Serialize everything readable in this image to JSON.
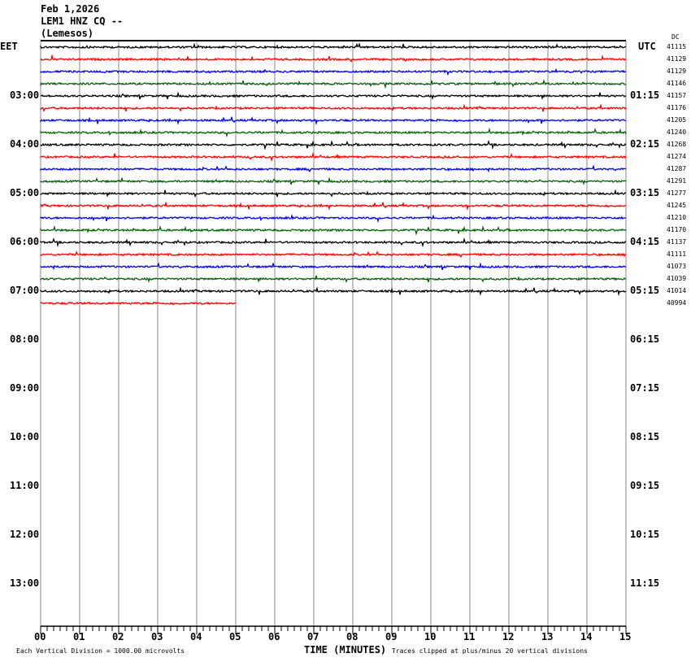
{
  "header": {
    "date": "Feb 1,2026",
    "station": "LEM1 HNZ CQ --",
    "location": "(Lemesos)"
  },
  "chart_data": {
    "type": "helicorder",
    "left_timezone": "EET",
    "right_timezone": "UTC",
    "dc_label": "DC",
    "left_hour_labels": [
      "03:00",
      "04:00",
      "05:00",
      "06:00",
      "07:00",
      "08:00",
      "09:00",
      "10:00",
      "11:00",
      "12:00",
      "13:00"
    ],
    "right_hour_labels": [
      "01:15",
      "02:15",
      "03:15",
      "04:15",
      "05:15",
      "06:15",
      "07:15",
      "08:15",
      "09:15",
      "10:15",
      "11:15"
    ],
    "x_ticks": [
      "00",
      "01",
      "02",
      "03",
      "04",
      "05",
      "06",
      "07",
      "08",
      "09",
      "10",
      "11",
      "12",
      "13",
      "14",
      "15"
    ],
    "xlabel": "TIME (MINUTES)",
    "xlim": [
      0,
      15
    ],
    "trace_colors": [
      "#000000",
      "#ff0000",
      "#0000ff",
      "#006400"
    ],
    "dc_values": [
      "41115",
      "41129",
      "41129",
      "41146",
      "41157",
      "41176",
      "41205",
      "41240",
      "41268",
      "41274",
      "41287",
      "41291",
      "41277",
      "41245",
      "41210",
      "41170",
      "41137",
      "41111",
      "41073",
      "41039",
      "41014",
      "40994"
    ],
    "last_trace_end_minute": 5,
    "scale_note": "Each Vertical Division = 1000.00 microvolts",
    "clip_note": "Traces clipped at plus/minus 20 vertical divisions"
  }
}
